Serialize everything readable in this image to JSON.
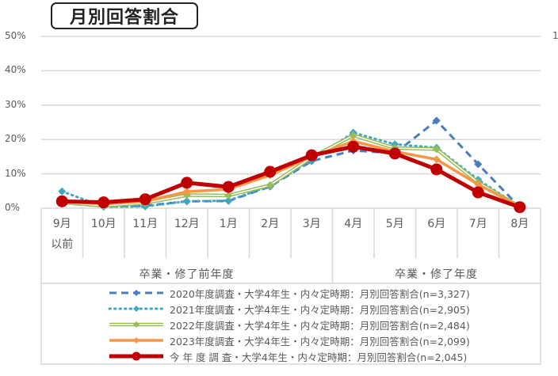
{
  "header": {
    "title": "月別回答割合"
  },
  "axis": {
    "y_ticks": [
      "50%",
      "40%",
      "30%",
      "20%",
      "10%",
      "0%"
    ],
    "right_cut_label": "1",
    "x_labels": [
      {
        "line1": "9月",
        "line2": "以前"
      },
      {
        "line1": "10月",
        "line2": ""
      },
      {
        "line1": "11月",
        "line2": ""
      },
      {
        "line1": "12月",
        "line2": ""
      },
      {
        "line1": "1月",
        "line2": ""
      },
      {
        "line1": "2月",
        "line2": ""
      },
      {
        "line1": "3月",
        "line2": ""
      },
      {
        "line1": "4月",
        "line2": ""
      },
      {
        "line1": "5月",
        "line2": ""
      },
      {
        "line1": "6月",
        "line2": ""
      },
      {
        "line1": "7月",
        "line2": ""
      },
      {
        "line1": "8月",
        "line2": ""
      }
    ],
    "groups": [
      {
        "label": "卒業・修了前年度"
      },
      {
        "label": "卒業・修了年度"
      }
    ]
  },
  "legend": [
    {
      "label": "2020年度調査・大学4年生・内々定時期：月別回答割合(n=3,327)"
    },
    {
      "label": "2021年度調査・大学4年生・内々定時期：月別回答割合(n=2,905)"
    },
    {
      "label": "2022年度調査・大学4年生・内々定時期：月別回答割合(n=2,484)"
    },
    {
      "label": "2023年度調査・大学4年生・内々定時期：月別回答割合(n=2,099)"
    },
    {
      "label": "今 年 度 調 査・大学4年生・内々定時期：月別回答割合(n=2,045)"
    }
  ],
  "chart_data": {
    "type": "line",
    "title": "月別回答割合",
    "xlabel": "",
    "ylabel": "",
    "ylim": [
      0,
      50
    ],
    "y_ticks": [
      0,
      10,
      20,
      30,
      40,
      50
    ],
    "grid": true,
    "legend_position": "bottom",
    "categories": [
      "9月以前",
      "10月",
      "11月",
      "12月",
      "1月",
      "2月",
      "3月",
      "4月",
      "5月",
      "6月",
      "7月",
      "8月"
    ],
    "category_groups": [
      {
        "label": "卒業・修了前年度",
        "range": [
          "9月以前",
          "3月"
        ]
      },
      {
        "label": "卒業・修了年度",
        "range": [
          "4月",
          "8月"
        ]
      }
    ],
    "series": [
      {
        "name": "2020年度調査・大学4年生・内々定時期：月別回答割合(n=3,327)",
        "color": "#4a7ebb",
        "style": "dashed",
        "marker": "diamond",
        "values": [
          1.5,
          0.5,
          0.7,
          2.0,
          2.1,
          6.3,
          13.7,
          16.8,
          16.0,
          25.5,
          12.8,
          0.3
        ]
      },
      {
        "name": "2021年度調査・大学4年生・内々定時期：月別回答割合(n=2,905)",
        "color": "#3fa9c4",
        "style": "dotted",
        "marker": "diamond",
        "values": [
          4.9,
          0.4,
          0.5,
          2.0,
          2.2,
          6.5,
          14.0,
          22.0,
          18.6,
          17.6,
          8.3,
          0.4
        ]
      },
      {
        "name": "2022年度調査・大学4年生・内々定時期：月別回答割合(n=2,484)",
        "color": "#9bbb59",
        "style": "double",
        "marker": "diamond",
        "values": [
          1.7,
          0.7,
          1.5,
          3.8,
          3.7,
          6.7,
          14.8,
          21.2,
          17.5,
          17.2,
          7.5,
          0.4
        ]
      },
      {
        "name": "2023年度調査・大学4年生・内々定時期：月別回答割合(n=2,099)",
        "color": "#f79646",
        "style": "solid",
        "marker": "diamond",
        "values": [
          2.0,
          1.2,
          2.0,
          4.8,
          5.5,
          9.6,
          15.0,
          19.5,
          16.5,
          14.2,
          6.9,
          0.5
        ]
      },
      {
        "name": "今 年 度 調 査・大学4年生・内々定時期：月別回答割合(n=2,045)",
        "color": "#c00000",
        "style": "solid-thick",
        "marker": "circle",
        "values": [
          2.0,
          1.7,
          2.6,
          7.4,
          6.2,
          10.6,
          15.4,
          17.9,
          15.9,
          11.3,
          4.6,
          0.3
        ]
      }
    ]
  }
}
